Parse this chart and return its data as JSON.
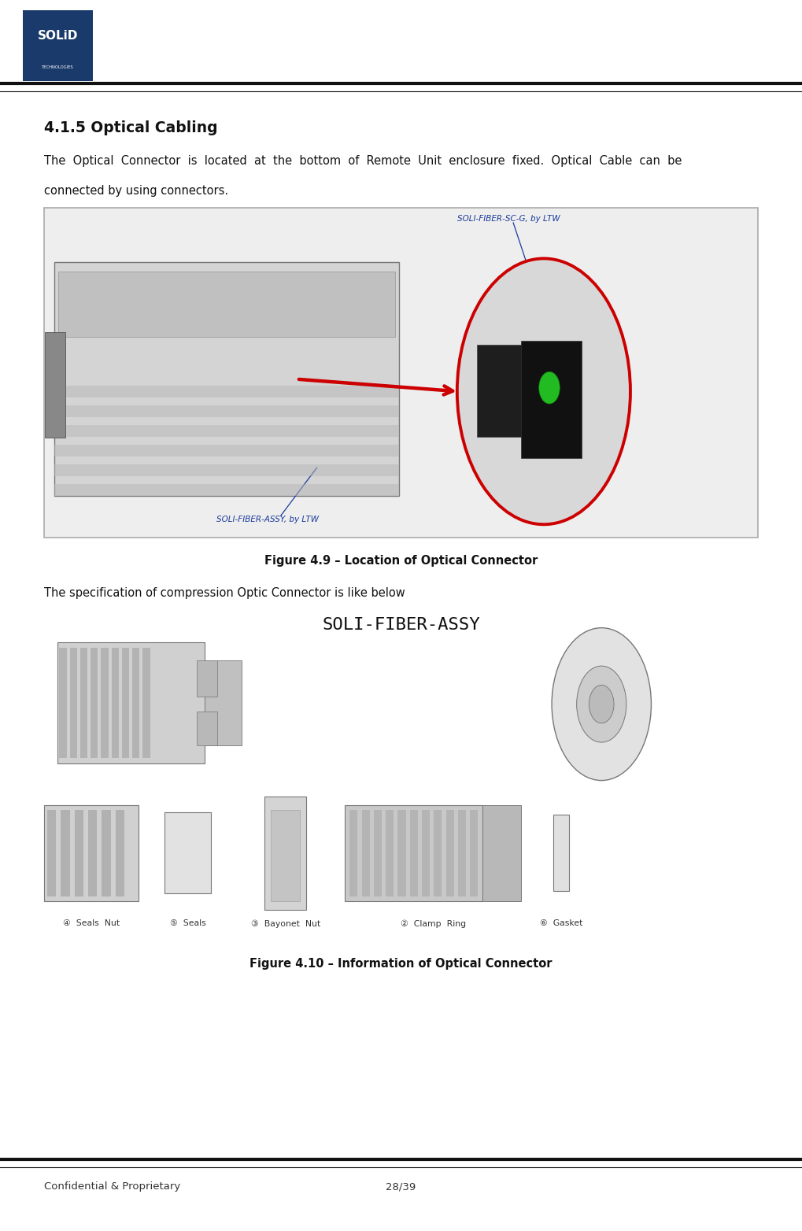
{
  "bg_color": "#ffffff",
  "logo_bg": "#1a3a6b",
  "logo_text_solid": "SOLiD",
  "logo_text_tech": "TECHNOLOGIES",
  "section_title": "4.1.5 Optical Cabling",
  "body_text1": "The  Optical  Connector  is  located  at  the  bottom  of  Remote  Unit  enclosure  fixed.  Optical  Cable  can  be",
  "body_text2": "connected by using connectors.",
  "fig49_caption": "Figure 4.9 – Location of Optical Connector",
  "label_sc_g": "SOLI-FIBER-SC-G, by LTW",
  "label_assy": "SOLI-FIBER-ASSY, by LTW",
  "spec_text": "The specification of compression Optic Connector is like below",
  "fiber_assy_title": "SOLI-FIBER-ASSY",
  "fig410_caption": "Figure 4.10 – Information of Optical Connector",
  "footer_left": "Confidential & Proprietary",
  "footer_right": "28/39",
  "part_labels": [
    "④  Seals  Nut",
    "⑤  Seals",
    "③  Bayonet  Nut",
    "②  Clamp  Ring",
    "⑥  Gasket"
  ]
}
